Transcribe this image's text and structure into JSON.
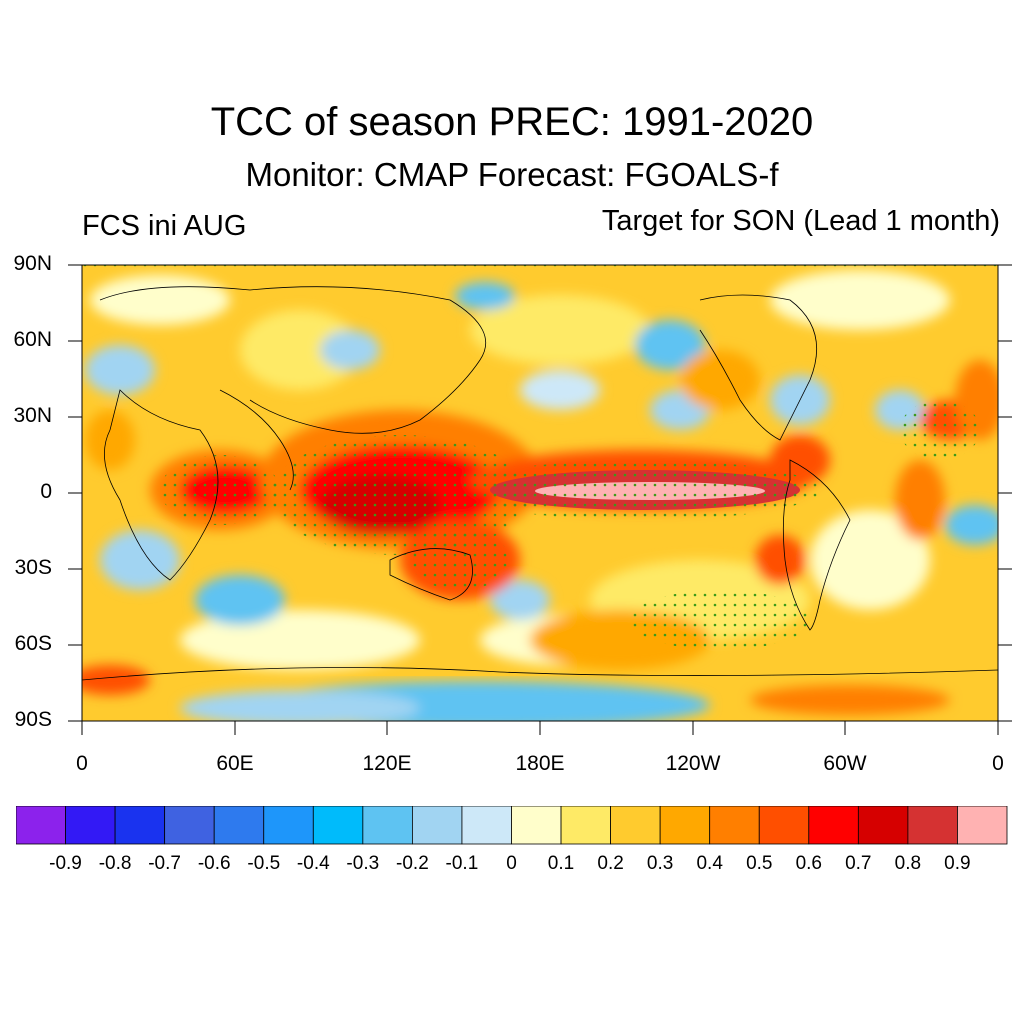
{
  "title": "TCC of season PREC: 1991-2020",
  "subtitle": "Monitor: CMAP   Forecast: FGOALS-f",
  "left_label": "FCS ini AUG",
  "right_label": "Target for SON (Lead 1 month)",
  "lat_labels": [
    "90N",
    "60N",
    "30N",
    "0",
    "30S",
    "60S",
    "90S"
  ],
  "lon_labels": [
    "0",
    "60E",
    "120E",
    "180E",
    "120W",
    "60W",
    "0"
  ],
  "colorbar": {
    "colors": [
      "#8c22ec",
      "#3319f5",
      "#1a33ef",
      "#3f62e1",
      "#2e7aee",
      "#1e96fa",
      "#00bbfb",
      "#5ec3f2",
      "#a1d4f2",
      "#cde8f8",
      "#fffecb",
      "#feea66",
      "#ffcb2e",
      "#ffa800",
      "#ff7f00",
      "#ff4f00",
      "#ff0000",
      "#d60000",
      "#d53232",
      "#ffb2b2"
    ],
    "labels": [
      "-0.9",
      "-0.8",
      "-0.7",
      "-0.6",
      "-0.5",
      "-0.4",
      "-0.3",
      "-0.2",
      "-0.1",
      "0",
      "0.1",
      "0.2",
      "0.3",
      "0.4",
      "0.5",
      "0.6",
      "0.7",
      "0.8",
      "0.9"
    ]
  }
}
